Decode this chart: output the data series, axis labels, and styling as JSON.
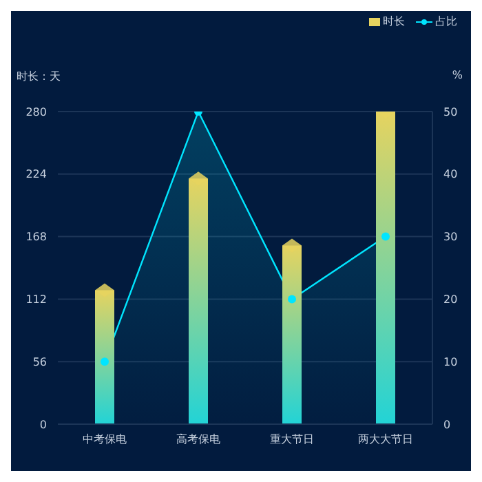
{
  "chart_data": {
    "type": "bar",
    "ylabel": "时长：天",
    "y2label": "%",
    "categories": [
      "中考保电",
      "高考保电",
      "重大节日",
      "两大大节日"
    ],
    "series": [
      {
        "name": "时长",
        "type": "bar",
        "color": "#e6d35f",
        "values": [
          120,
          220,
          160,
          280
        ]
      },
      {
        "name": "占比",
        "type": "area",
        "axis": "y2",
        "color": "#00e5ff",
        "values": [
          10,
          50,
          20,
          30
        ]
      }
    ],
    "ylim": [
      0,
      280
    ],
    "yticks": [
      0,
      56,
      112,
      168,
      224,
      280
    ],
    "y2lim": [
      0,
      50
    ],
    "y2ticks": [
      0,
      10,
      20,
      30,
      40,
      50
    ],
    "grid": "y",
    "legend": "top right",
    "marker": "circle"
  }
}
